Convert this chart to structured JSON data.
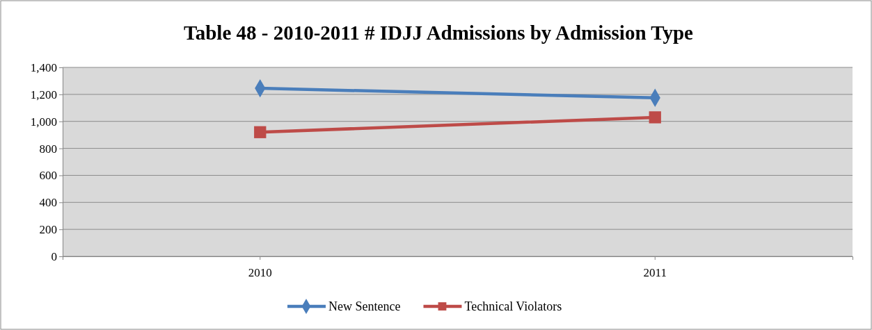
{
  "chart_data": {
    "type": "line",
    "title": "Table 48 - 2010-2011 # IDJJ Admissions by Admission Type",
    "categories": [
      "2010",
      "2011"
    ],
    "series": [
      {
        "name": "New Sentence",
        "color": "#4a7ebb",
        "marker": "diamond",
        "values": [
          1245,
          1175
        ]
      },
      {
        "name": "Technical Violators",
        "color": "#be4b48",
        "marker": "square",
        "values": [
          920,
          1030
        ]
      }
    ],
    "ylim": [
      0,
      1400
    ],
    "yticks": [
      {
        "value": 0,
        "label": "0"
      },
      {
        "value": 200,
        "label": "200"
      },
      {
        "value": 400,
        "label": "400"
      },
      {
        "value": 600,
        "label": "600"
      },
      {
        "value": 800,
        "label": "800"
      },
      {
        "value": 1000,
        "label": "1,000"
      },
      {
        "value": 1200,
        "label": "1,200"
      },
      {
        "value": 1400,
        "label": "1,400"
      }
    ],
    "grid": "y",
    "legend": "bottom",
    "line_style": "solid"
  }
}
